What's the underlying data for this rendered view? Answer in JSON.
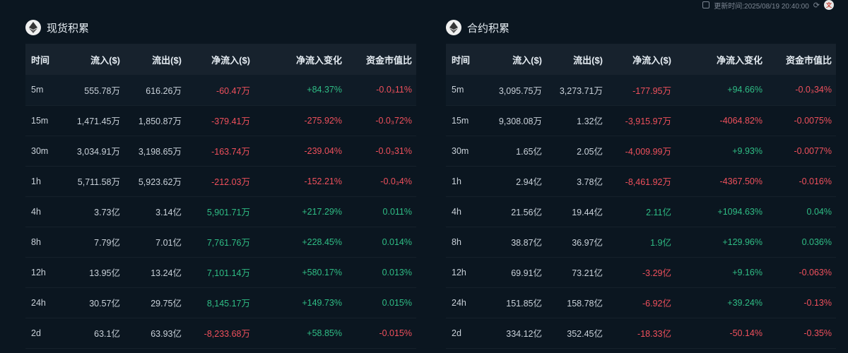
{
  "topbar": {
    "updated": "更新时间:2025/08/19 20:40:00"
  },
  "panels": [
    {
      "title": "现货积累",
      "columns": [
        "时间",
        "流入($)",
        "流出($)",
        "净流入($)",
        "净流入变化",
        "资金市值比"
      ],
      "rows": [
        {
          "time": "5m",
          "inflow": "555.78万",
          "outflow": "616.26万",
          "net": "-60.47万",
          "change": "+84.37%",
          "ratio": "-0.0₃11%",
          "net_sign": "neg",
          "change_sign": "pos",
          "ratio_sign": "neg"
        },
        {
          "time": "15m",
          "inflow": "1,471.45万",
          "outflow": "1,850.87万",
          "net": "-379.41万",
          "change": "-275.92%",
          "ratio": "-0.0₃72%",
          "net_sign": "neg",
          "change_sign": "neg",
          "ratio_sign": "neg"
        },
        {
          "time": "30m",
          "inflow": "3,034.91万",
          "outflow": "3,198.65万",
          "net": "-163.74万",
          "change": "-239.04%",
          "ratio": "-0.0₃31%",
          "net_sign": "neg",
          "change_sign": "neg",
          "ratio_sign": "neg"
        },
        {
          "time": "1h",
          "inflow": "5,711.58万",
          "outflow": "5,923.62万",
          "net": "-212.03万",
          "change": "-152.21%",
          "ratio": "-0.0₃4%",
          "net_sign": "neg",
          "change_sign": "neg",
          "ratio_sign": "neg"
        },
        {
          "time": "4h",
          "inflow": "3.73亿",
          "outflow": "3.14亿",
          "net": "5,901.71万",
          "change": "+217.29%",
          "ratio": "0.011%",
          "net_sign": "pos",
          "change_sign": "pos",
          "ratio_sign": "pos"
        },
        {
          "time": "8h",
          "inflow": "7.79亿",
          "outflow": "7.01亿",
          "net": "7,761.76万",
          "change": "+228.45%",
          "ratio": "0.014%",
          "net_sign": "pos",
          "change_sign": "pos",
          "ratio_sign": "pos"
        },
        {
          "time": "12h",
          "inflow": "13.95亿",
          "outflow": "13.24亿",
          "net": "7,101.14万",
          "change": "+580.17%",
          "ratio": "0.013%",
          "net_sign": "pos",
          "change_sign": "pos",
          "ratio_sign": "pos"
        },
        {
          "time": "24h",
          "inflow": "30.57亿",
          "outflow": "29.75亿",
          "net": "8,145.17万",
          "change": "+149.73%",
          "ratio": "0.015%",
          "net_sign": "pos",
          "change_sign": "pos",
          "ratio_sign": "pos"
        },
        {
          "time": "2d",
          "inflow": "63.1亿",
          "outflow": "63.93亿",
          "net": "-8,233.68万",
          "change": "+58.85%",
          "ratio": "-0.015%",
          "net_sign": "neg",
          "change_sign": "pos",
          "ratio_sign": "neg"
        }
      ]
    },
    {
      "title": "合约积累",
      "columns": [
        "时间",
        "流入($)",
        "流出($)",
        "净流入($)",
        "净流入变化",
        "资金市值比"
      ],
      "rows": [
        {
          "time": "5m",
          "inflow": "3,095.75万",
          "outflow": "3,273.71万",
          "net": "-177.95万",
          "change": "+94.66%",
          "ratio": "-0.0₃34%",
          "net_sign": "neg",
          "change_sign": "pos",
          "ratio_sign": "neg"
        },
        {
          "time": "15m",
          "inflow": "9,308.08万",
          "outflow": "1.32亿",
          "net": "-3,915.97万",
          "change": "-4064.82%",
          "ratio": "-0.0075%",
          "net_sign": "neg",
          "change_sign": "neg",
          "ratio_sign": "neg"
        },
        {
          "time": "30m",
          "inflow": "1.65亿",
          "outflow": "2.05亿",
          "net": "-4,009.99万",
          "change": "+9.93%",
          "ratio": "-0.0077%",
          "net_sign": "neg",
          "change_sign": "pos",
          "ratio_sign": "neg"
        },
        {
          "time": "1h",
          "inflow": "2.94亿",
          "outflow": "3.78亿",
          "net": "-8,461.92万",
          "change": "-4367.50%",
          "ratio": "-0.016%",
          "net_sign": "neg",
          "change_sign": "neg",
          "ratio_sign": "neg"
        },
        {
          "time": "4h",
          "inflow": "21.56亿",
          "outflow": "19.44亿",
          "net": "2.11亿",
          "change": "+1094.63%",
          "ratio": "0.04%",
          "net_sign": "pos",
          "change_sign": "pos",
          "ratio_sign": "pos"
        },
        {
          "time": "8h",
          "inflow": "38.87亿",
          "outflow": "36.97亿",
          "net": "1.9亿",
          "change": "+129.96%",
          "ratio": "0.036%",
          "net_sign": "pos",
          "change_sign": "pos",
          "ratio_sign": "pos"
        },
        {
          "time": "12h",
          "inflow": "69.91亿",
          "outflow": "73.21亿",
          "net": "-3.29亿",
          "change": "+9.16%",
          "ratio": "-0.063%",
          "net_sign": "neg",
          "change_sign": "pos",
          "ratio_sign": "neg"
        },
        {
          "time": "24h",
          "inflow": "151.85亿",
          "outflow": "158.78亿",
          "net": "-6.92亿",
          "change": "+39.24%",
          "ratio": "-0.13%",
          "net_sign": "neg",
          "change_sign": "pos",
          "ratio_sign": "neg"
        },
        {
          "time": "2d",
          "inflow": "334.12亿",
          "outflow": "352.45亿",
          "net": "-18.33亿",
          "change": "-50.14%",
          "ratio": "-0.35%",
          "net_sign": "neg",
          "change_sign": "neg",
          "ratio_sign": "neg"
        }
      ]
    }
  ],
  "colors": {
    "positive": "#2fbd85",
    "negative": "#f0505c",
    "background": "#0b1620"
  }
}
